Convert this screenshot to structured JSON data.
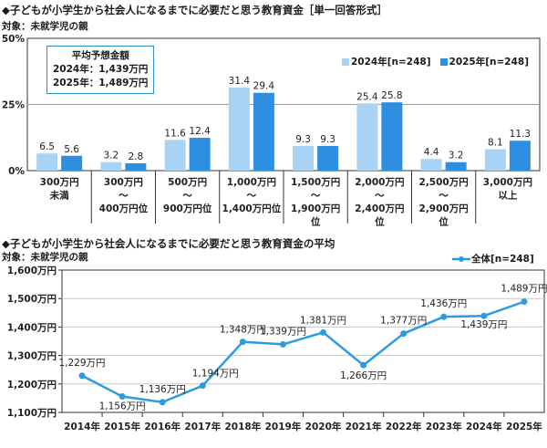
{
  "chart_data": [
    {
      "type": "bar",
      "title": "◆子どもが小学生から社会人になるまでに必要だと思う教育資金［単一回答形式］",
      "subtitle": "対象：未就学児の親",
      "categories": [
        [
          "300万円",
          "未満"
        ],
        [
          "300万円",
          "〜",
          "400万円位"
        ],
        [
          "500万円",
          "〜",
          "900万円位"
        ],
        [
          "1,000万円",
          "〜",
          "1,400万円位"
        ],
        [
          "1,500万円",
          "〜",
          "1,900万円",
          "位"
        ],
        [
          "2,000万円",
          "〜",
          "2,400万円",
          "位"
        ],
        [
          "2,500万円",
          "〜",
          "2,900万円",
          "位"
        ],
        [
          "3,000万円",
          "以上"
        ]
      ],
      "series": [
        {
          "name": "2024年[n=248]",
          "color": "#a9d3f5",
          "values": [
            6.5,
            3.2,
            11.6,
            31.4,
            9.3,
            25.4,
            4.4,
            8.1
          ]
        },
        {
          "name": "2025年[n=248]",
          "color": "#2e8fe0",
          "values": [
            5.6,
            2.8,
            12.4,
            29.4,
            9.3,
            25.8,
            3.2,
            11.3
          ]
        }
      ],
      "ylim": [
        0,
        50
      ],
      "yticks": [
        "0%",
        "25%",
        "50%"
      ],
      "annotation": {
        "title": "平均予想金額",
        "lines": [
          "2024年：1,439万円",
          "2025年：1,489万円"
        ]
      }
    },
    {
      "type": "line",
      "title": "◆子どもが小学生から社会人になるまでに必要だと思う教育資金の平均",
      "subtitle": "対象：未就学児の親",
      "x": [
        "2014年",
        "2015年",
        "2016年",
        "2017年",
        "2018年",
        "2019年",
        "2020年",
        "2021年",
        "2022年",
        "2023年",
        "2024年",
        "2025年"
      ],
      "series": [
        {
          "name": "全体[n=248]",
          "color": "#2e9be0",
          "values": [
            1229,
            1156,
            1136,
            1194,
            1348,
            1339,
            1381,
            1266,
            1377,
            1436,
            1439,
            1489
          ],
          "labels": [
            "1,229万円",
            "1,156万円",
            "1,136万円",
            "1,194万円",
            "1,348万円",
            "1,339万円",
            "1,381万円",
            "1,266万円",
            "1,377万円",
            "1,436万円",
            "1,439万円",
            "1,489万円"
          ]
        }
      ],
      "ylim": [
        1100,
        1600
      ],
      "yticks": [
        {
          "v": 1100,
          "label": "1,100万円"
        },
        {
          "v": 1200,
          "label": "1,200万円"
        },
        {
          "v": 1300,
          "label": "1,300万円"
        },
        {
          "v": 1400,
          "label": "1,400万円"
        },
        {
          "v": 1500,
          "label": "1,500万円"
        },
        {
          "v": 1600,
          "label": "1,600万円"
        }
      ]
    }
  ]
}
